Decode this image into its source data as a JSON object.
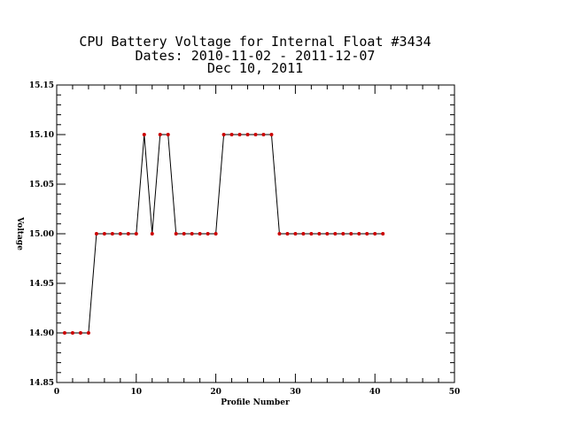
{
  "chart_data": {
    "type": "line",
    "title_lines": [
      "CPU Battery Voltage for Internal Float #3434",
      "Dates:  2010-11-02 -  2011-12-07",
      "Dec 10, 2011"
    ],
    "xlabel": "Profile Number",
    "ylabel": "Voltage",
    "xlim": [
      0,
      50
    ],
    "ylim": [
      14.85,
      15.15
    ],
    "x_ticks": [
      "0",
      "10",
      "20",
      "30",
      "40",
      "50"
    ],
    "y_ticks": [
      "14.85",
      "14.90",
      "14.95",
      "15.00",
      "15.05",
      "15.10",
      "15.15"
    ],
    "x_tick_values": [
      0,
      10,
      20,
      30,
      40,
      50
    ],
    "y_tick_values": [
      14.85,
      14.9,
      14.95,
      15.0,
      15.05,
      15.1,
      15.15
    ],
    "x_minor_step": 2,
    "y_minor_step": 0.01,
    "grid": false,
    "line_color": "#000000",
    "marker_color": "#cc0000",
    "series": [
      {
        "x": [
          1,
          2,
          3,
          4,
          5,
          6,
          7,
          8,
          9,
          10,
          11,
          12,
          13,
          14,
          15,
          16,
          17,
          18,
          19,
          20,
          21,
          22,
          23,
          24,
          25,
          26,
          27,
          28,
          29,
          30,
          31,
          32,
          33,
          34,
          35,
          36,
          37,
          38,
          39,
          40,
          41
        ],
        "values": [
          14.9,
          14.9,
          14.9,
          14.9,
          15.0,
          15.0,
          15.0,
          15.0,
          15.0,
          15.0,
          15.1,
          15.0,
          15.1,
          15.1,
          15.0,
          15.0,
          15.0,
          15.0,
          15.0,
          15.0,
          15.1,
          15.1,
          15.1,
          15.1,
          15.1,
          15.1,
          15.1,
          15.0,
          15.0,
          15.0,
          15.0,
          15.0,
          15.0,
          15.0,
          15.0,
          15.0,
          15.0,
          15.0,
          15.0,
          15.0,
          15.0
        ]
      }
    ]
  }
}
